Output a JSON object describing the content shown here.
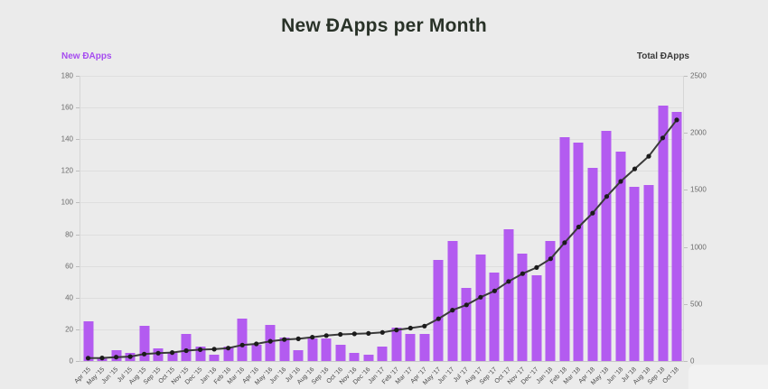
{
  "page": {
    "title": "New ĐApps per Month",
    "left_axis_label": "New ĐApps",
    "right_axis_label": "Total ĐApps"
  },
  "colors": {
    "bar": "#b35bf0",
    "legend_left": "#a64cf0",
    "line": "#3a3a3a",
    "dot": "#1b1b1b",
    "background": "#ebebeb"
  },
  "chart_data": {
    "type": "bar",
    "title": "New ĐApps per Month",
    "categories": [
      "Apr '15",
      "May '15",
      "Jun '15",
      "Jul '15",
      "Aug '15",
      "Sep '15",
      "Oct '15",
      "Nov '15",
      "Dec '15",
      "Jan '16",
      "Feb '16",
      "Mar '16",
      "Apr '16",
      "May '16",
      "Jun '16",
      "Jul '16",
      "Aug '16",
      "Sep '16",
      "Oct '16",
      "Nov '16",
      "Dec '16",
      "Jan '17",
      "Feb '17",
      "Mar '17",
      "Apr '17",
      "May '17",
      "Jun '17",
      "Jul '17",
      "Aug '17",
      "Sep '17",
      "Oct '17",
      "Nov '17",
      "Dec '17",
      "Jan '18",
      "Feb '18",
      "Mar '18",
      "Apr '18",
      "May '18",
      "Jun '18",
      "Jul '18",
      "Aug '18",
      "Sep '18",
      "Oct '18"
    ],
    "series": [
      {
        "name": "New ĐApps",
        "type": "bar",
        "axis": "left",
        "values": [
          25,
          2,
          7,
          5,
          22,
          8,
          5,
          17,
          9,
          4,
          9,
          27,
          10,
          23,
          15,
          7,
          14,
          14,
          10,
          5,
          4,
          9,
          21,
          17,
          17,
          64,
          76,
          46,
          67,
          56,
          83,
          68,
          54,
          76,
          141,
          138,
          122,
          145,
          132,
          110,
          111,
          161,
          157
        ]
      },
      {
        "name": "Total ĐApps",
        "type": "line",
        "axis": "right",
        "values": [
          25,
          27,
          34,
          39,
          61,
          69,
          74,
          91,
          100,
          104,
          113,
          140,
          150,
          173,
          188,
          195,
          209,
          223,
          233,
          238,
          242,
          251,
          272,
          289,
          306,
          370,
          446,
          492,
          559,
          615,
          698,
          766,
          820,
          896,
          1037,
          1175,
          1297,
          1442,
          1574,
          1684,
          1795,
          1956,
          2113
        ]
      }
    ],
    "left_axis": {
      "label": "New ĐApps",
      "ticks": [
        0,
        20,
        40,
        60,
        80,
        100,
        120,
        140,
        160,
        180
      ],
      "range": [
        0,
        180
      ]
    },
    "right_axis": {
      "label": "Total ĐApps",
      "ticks": [
        0,
        500,
        1000,
        1500,
        2000,
        2500
      ],
      "range": [
        0,
        2500
      ]
    },
    "grid": true,
    "legend_position": "top"
  }
}
